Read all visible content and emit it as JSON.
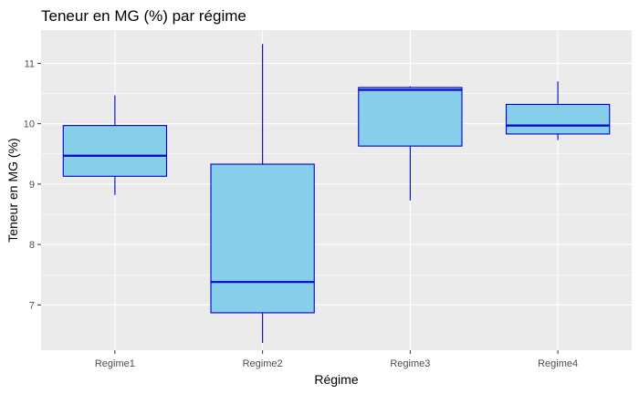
{
  "chart_data": {
    "type": "boxplot",
    "title": "Teneur en MG (%) par régime",
    "xlabel": "Régime",
    "ylabel": "Teneur en MG (%)",
    "categories": [
      "Regime1",
      "Regime2",
      "Regime3",
      "Regime4"
    ],
    "ylim": [
      6.25,
      11.55
    ],
    "yticks": [
      7,
      8,
      9,
      10,
      11
    ],
    "grid": true,
    "legend": "none",
    "colors": {
      "fill": "#87ceeb",
      "stroke": "#0000cd",
      "panel": "#ebebeb"
    },
    "boxes": [
      {
        "category": "Regime1",
        "min": 8.82,
        "q1": 9.13,
        "median": 9.47,
        "q3": 9.97,
        "max": 10.47
      },
      {
        "category": "Regime2",
        "min": 6.37,
        "q1": 6.87,
        "median": 7.38,
        "q3": 9.33,
        "max": 11.32
      },
      {
        "category": "Regime3",
        "min": 8.73,
        "q1": 9.63,
        "median": 10.56,
        "q3": 10.6,
        "max": 10.62
      },
      {
        "category": "Regime4",
        "min": 9.73,
        "q1": 9.83,
        "median": 9.97,
        "q3": 10.32,
        "max": 10.7
      }
    ]
  }
}
